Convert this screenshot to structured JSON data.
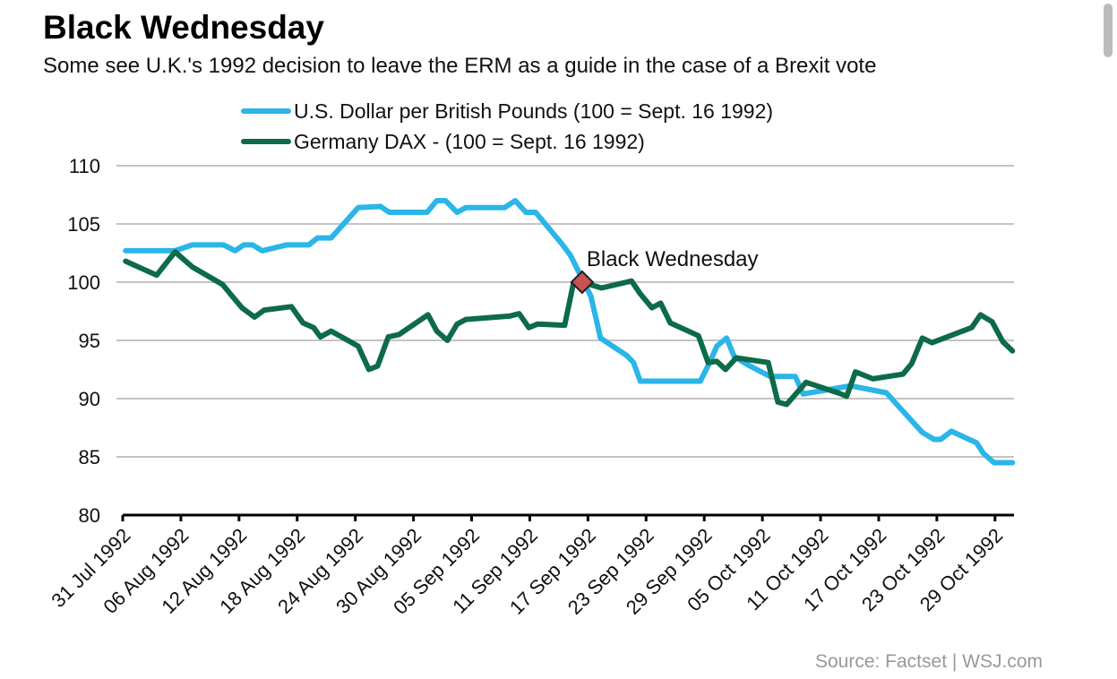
{
  "title": "Black Wednesday",
  "subtitle": "Some see U.K.'s 1992 decision  to leave the ERM as a guide in the case of a Brexit vote",
  "source": "Source: Factset  |  WSJ.com",
  "chart_data": {
    "type": "line",
    "title": "Black Wednesday",
    "xlabel": "",
    "ylabel": "",
    "x_unit": "days since 31 Jul 1992",
    "ylim": [
      80,
      110
    ],
    "yticks": [
      80,
      85,
      90,
      95,
      100,
      105,
      110
    ],
    "xlim": [
      0,
      92
    ],
    "xtick_days": [
      0,
      6,
      12,
      18,
      24,
      30,
      36,
      42,
      48,
      54,
      60,
      66,
      72,
      78,
      84,
      90
    ],
    "xtick_labels": [
      "31 Jul 1992",
      "06 Aug 1992",
      "12 Aug 1992",
      "18 Aug 1992",
      "24 Aug 1992",
      "30 Aug 1992",
      "05 Sep 1992",
      "11 Sep 1992",
      "17 Sep 1992",
      "23 Sep 1992",
      "29 Sep 1992",
      "05 Oct 1992",
      "11 Oct 1992",
      "17 Oct 1992",
      "23 Oct 1992",
      "29 Oct 1992"
    ],
    "grid": true,
    "legend_position": "top-center",
    "series": [
      {
        "name": "U.S. Dollar per British Pounds (100 = Sept. 16 1992)",
        "color": "#2bb5e8",
        "x": [
          0.3,
          5.4,
          7.2,
          10.4,
          11.6,
          12.5,
          13.4,
          14.4,
          16.9,
          19.2,
          20.1,
          21.5,
          24.3,
          26.6,
          27.5,
          31.4,
          32.4,
          33.3,
          34.5,
          35.4,
          39.4,
          40.5,
          41.6,
          42.6,
          45.3,
          46.2,
          47.4,
          48.3,
          49.3,
          52.0,
          52.7,
          53.4,
          59.6,
          60.5,
          61.3,
          62.3,
          63.1,
          64.5,
          66.8,
          69.4,
          70.2,
          74.4,
          75.1,
          78.8,
          80.2,
          81.4,
          82.5,
          83.7,
          84.4,
          85.5,
          88.1,
          88.8,
          89.9,
          91.8
        ],
        "y": [
          102.7,
          102.7,
          103.2,
          103.2,
          102.7,
          103.2,
          103.2,
          102.7,
          103.2,
          103.2,
          103.8,
          103.8,
          106.4,
          106.5,
          106.0,
          106.0,
          107.0,
          107.0,
          106.0,
          106.4,
          106.4,
          107.0,
          106.0,
          106.0,
          103.3,
          102.3,
          100.3,
          98.8,
          95.2,
          93.7,
          93.1,
          91.5,
          91.5,
          93.0,
          94.5,
          95.2,
          93.6,
          92.9,
          91.9,
          91.9,
          90.4,
          91.0,
          91.1,
          90.5,
          89.2,
          88.1,
          87.1,
          86.5,
          86.5,
          87.2,
          86.2,
          85.3,
          84.5,
          84.5
        ]
      },
      {
        "name": "Germany DAX - (100 = Sept. 16 1992)",
        "color": "#0d6b47",
        "x": [
          0.3,
          3.5,
          5.4,
          7.2,
          10.3,
          11.6,
          12.3,
          13.6,
          14.6,
          17.4,
          18.6,
          19.7,
          20.4,
          21.5,
          24.3,
          25.4,
          26.3,
          27.4,
          28.5,
          31.5,
          32.4,
          33.5,
          34.5,
          35.4,
          40.0,
          40.9,
          41.9,
          42.8,
          45.6,
          46.5,
          47.4,
          49.4,
          52.5,
          53.4,
          54.6,
          55.5,
          56.5,
          59.4,
          60.4,
          61.3,
          62.2,
          63.3,
          66.6,
          67.6,
          68.5,
          70.5,
          73.8,
          74.7,
          75.6,
          77.4,
          80.5,
          81.4,
          82.5,
          83.5,
          87.6,
          88.5,
          89.7,
          90.8,
          91.8
        ],
        "y": [
          101.8,
          100.6,
          102.6,
          101.3,
          99.8,
          98.5,
          97.8,
          97.0,
          97.6,
          97.9,
          96.5,
          96.1,
          95.3,
          95.8,
          94.5,
          92.5,
          92.8,
          95.3,
          95.5,
          97.2,
          95.8,
          95.0,
          96.4,
          96.8,
          97.1,
          97.3,
          96.1,
          96.4,
          96.3,
          99.9,
          100.0,
          99.5,
          100.1,
          99.0,
          97.8,
          98.2,
          96.5,
          95.4,
          93.1,
          93.2,
          92.5,
          93.5,
          93.1,
          89.7,
          89.5,
          91.4,
          90.5,
          90.2,
          92.3,
          91.7,
          92.1,
          93.0,
          95.2,
          94.8,
          96.1,
          97.2,
          96.6,
          94.9,
          94.1
        ]
      }
    ],
    "annotations": [
      {
        "text": "Black Wednesday",
        "x": 47.4,
        "y": 100,
        "marker": "diamond",
        "color": "#c9514f"
      }
    ]
  }
}
